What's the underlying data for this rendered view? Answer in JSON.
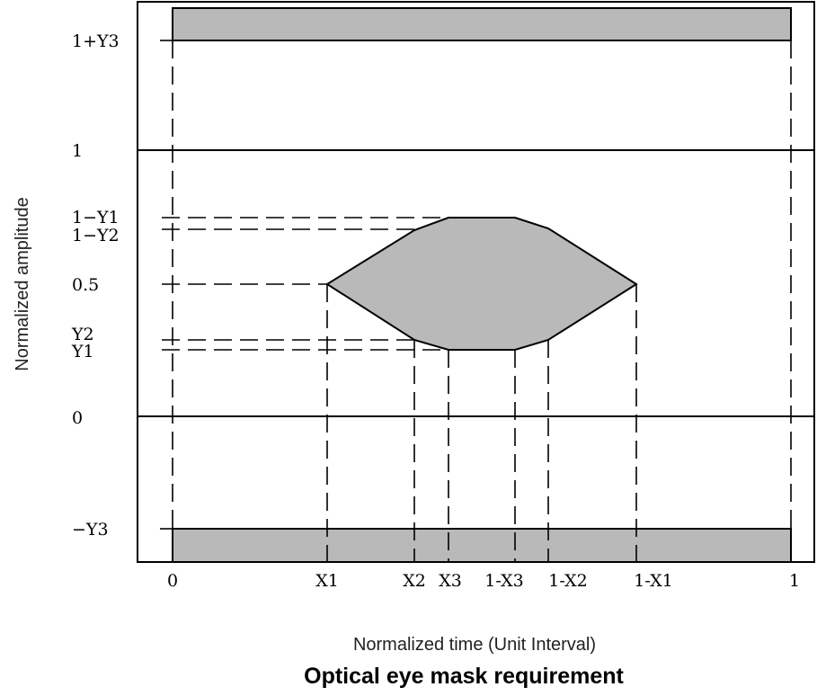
{
  "diagram": {
    "y_axis_title": "Normalized amplitude",
    "x_axis_title": "Normalized time (Unit Interval)",
    "caption": "Optical eye mask requirement",
    "colors": {
      "mask_fill": "#b9b9b9",
      "line": "#000000"
    },
    "y_labels": {
      "one_plus_y3": "1+Y3",
      "one": "1",
      "one_minus_y1": "1−Y1",
      "one_minus_y2": "1−Y2",
      "half": "0.5",
      "y2": "Y2",
      "y1": "Y1",
      "zero": "0",
      "minus_y3": "−Y3"
    },
    "x_labels": {
      "zero": "0",
      "x1": "X1",
      "x2": "X2",
      "x3": "X3",
      "one_minus_x3": "1-X3",
      "one_minus_x2": "1-X2",
      "one_minus_x1": "1-X1",
      "one": "1"
    }
  }
}
